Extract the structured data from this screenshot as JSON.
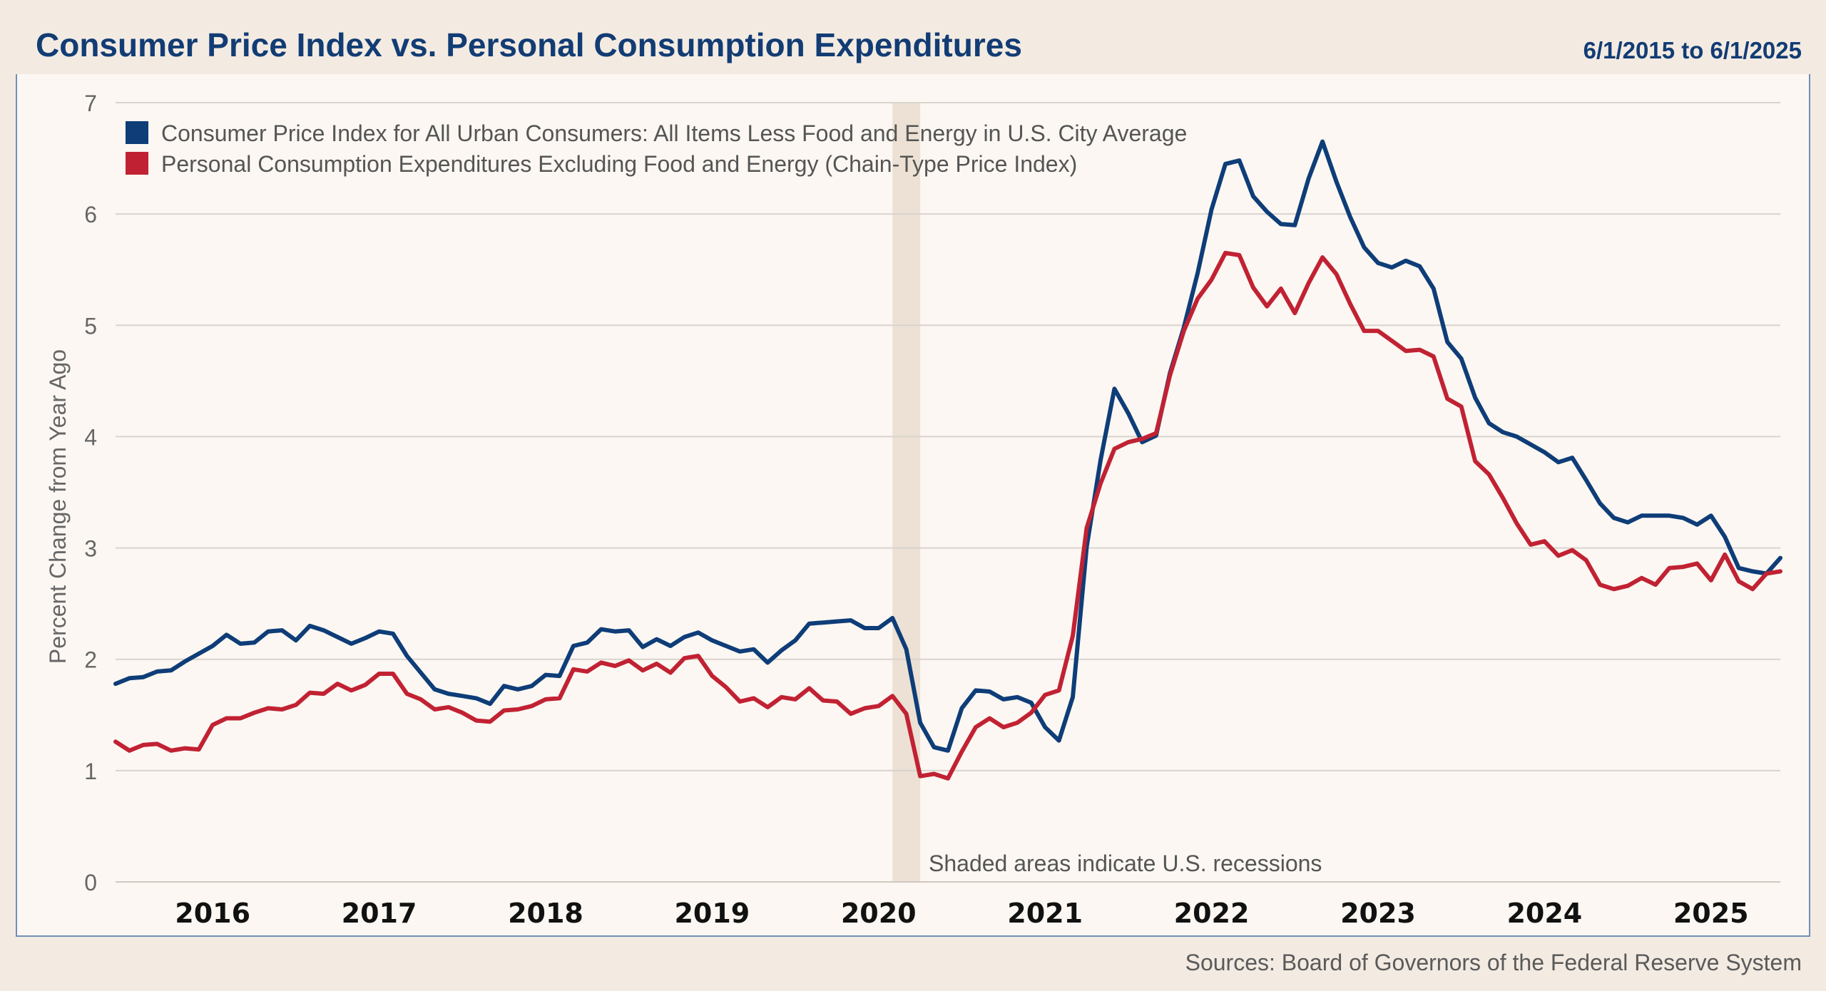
{
  "header": {
    "title": "Consumer Price Index vs. Personal Consumption Expenditures",
    "date_range": "6/1/2015 to 6/1/2025"
  },
  "footer": {
    "sources": "Sources: Board of Governors of the Federal Reserve System"
  },
  "colors": {
    "cpi": "#0e3d78",
    "pce": "#c12233",
    "recession": "#ece1d4",
    "grid": "#d9d4ce",
    "panel": "#fcf7f2",
    "header": "#f3ebe2"
  },
  "chart_data": {
    "type": "line",
    "title": "Consumer Price Index vs. Personal Consumption Expenditures",
    "xlabel": "",
    "ylabel": "Percent Change from Year Ago",
    "ylim": [
      0,
      7
    ],
    "yticks": [
      "0",
      "1",
      "2",
      "3",
      "4",
      "5",
      "6",
      "7"
    ],
    "xlim": [
      "2015-06",
      "2025-06"
    ],
    "xticks": [
      "2016",
      "2017",
      "2018",
      "2019",
      "2020",
      "2021",
      "2022",
      "2023",
      "2024",
      "2025"
    ],
    "grid": true,
    "legend_position": "top-left",
    "recession_note": "Shaded areas indicate U.S. recessions",
    "recessions": [
      {
        "start": "2020-02",
        "end": "2020-04"
      }
    ],
    "x": [
      "2015-06",
      "2015-07",
      "2015-08",
      "2015-09",
      "2015-10",
      "2015-11",
      "2015-12",
      "2016-01",
      "2016-02",
      "2016-03",
      "2016-04",
      "2016-05",
      "2016-06",
      "2016-07",
      "2016-08",
      "2016-09",
      "2016-10",
      "2016-11",
      "2016-12",
      "2017-01",
      "2017-02",
      "2017-03",
      "2017-04",
      "2017-05",
      "2017-06",
      "2017-07",
      "2017-08",
      "2017-09",
      "2017-10",
      "2017-11",
      "2017-12",
      "2018-01",
      "2018-02",
      "2018-03",
      "2018-04",
      "2018-05",
      "2018-06",
      "2018-07",
      "2018-08",
      "2018-09",
      "2018-10",
      "2018-11",
      "2018-12",
      "2019-01",
      "2019-02",
      "2019-03",
      "2019-04",
      "2019-05",
      "2019-06",
      "2019-07",
      "2019-08",
      "2019-09",
      "2019-10",
      "2019-11",
      "2019-12",
      "2020-01",
      "2020-02",
      "2020-03",
      "2020-04",
      "2020-05",
      "2020-06",
      "2020-07",
      "2020-08",
      "2020-09",
      "2020-10",
      "2020-11",
      "2020-12",
      "2021-01",
      "2021-02",
      "2021-03",
      "2021-04",
      "2021-05",
      "2021-06",
      "2021-07",
      "2021-08",
      "2021-09",
      "2021-10",
      "2021-11",
      "2021-12",
      "2022-01",
      "2022-02",
      "2022-03",
      "2022-04",
      "2022-05",
      "2022-06",
      "2022-07",
      "2022-08",
      "2022-09",
      "2022-10",
      "2022-11",
      "2022-12",
      "2023-01",
      "2023-02",
      "2023-03",
      "2023-04",
      "2023-05",
      "2023-06",
      "2023-07",
      "2023-08",
      "2023-09",
      "2023-10",
      "2023-11",
      "2023-12",
      "2024-01",
      "2024-02",
      "2024-03",
      "2024-04",
      "2024-05",
      "2024-06",
      "2024-07",
      "2024-08",
      "2024-09",
      "2024-10",
      "2024-11",
      "2024-12",
      "2025-01",
      "2025-02",
      "2025-03",
      "2025-04",
      "2025-05",
      "2025-06"
    ],
    "series": [
      {
        "name": "Consumer Price Index for All Urban Consumers: All Items Less Food and Energy in U.S. City Average",
        "color": "#0e3d78",
        "values": [
          1.78,
          1.83,
          1.84,
          1.89,
          1.9,
          1.98,
          2.05,
          2.12,
          2.22,
          2.14,
          2.15,
          2.25,
          2.26,
          2.17,
          2.3,
          2.26,
          2.2,
          2.14,
          2.19,
          2.25,
          2.23,
          2.03,
          1.88,
          1.73,
          1.69,
          1.67,
          1.65,
          1.6,
          1.76,
          1.73,
          1.76,
          1.86,
          1.85,
          2.12,
          2.15,
          2.27,
          2.25,
          2.26,
          2.11,
          2.18,
          2.12,
          2.2,
          2.24,
          2.17,
          2.12,
          2.07,
          2.09,
          1.97,
          2.08,
          2.17,
          2.32,
          2.33,
          2.34,
          2.35,
          2.28,
          2.28,
          2.37,
          2.09,
          1.43,
          1.21,
          1.18,
          1.56,
          1.72,
          1.71,
          1.64,
          1.66,
          1.61,
          1.39,
          1.27,
          1.66,
          3.01,
          3.79,
          4.43,
          4.21,
          3.95,
          4.01,
          4.57,
          4.98,
          5.47,
          6.04,
          6.45,
          6.48,
          6.16,
          6.02,
          5.91,
          5.9,
          6.32,
          6.65,
          6.29,
          5.97,
          5.7,
          5.56,
          5.52,
          5.58,
          5.53,
          5.33,
          4.85,
          4.7,
          4.35,
          4.12,
          4.04,
          4.0,
          3.93,
          3.86,
          3.77,
          3.81,
          3.61,
          3.4,
          3.27,
          3.23,
          3.29,
          3.29,
          3.29,
          3.27,
          3.21,
          3.29,
          3.1,
          2.82,
          2.79,
          2.77,
          2.91
        ]
      },
      {
        "name": "Personal Consumption Expenditures Excluding Food and Energy (Chain-Type Price Index)",
        "color": "#c12233",
        "values": [
          1.26,
          1.18,
          1.23,
          1.24,
          1.18,
          1.2,
          1.19,
          1.41,
          1.47,
          1.47,
          1.52,
          1.56,
          1.55,
          1.59,
          1.7,
          1.69,
          1.78,
          1.72,
          1.77,
          1.87,
          1.87,
          1.69,
          1.64,
          1.55,
          1.57,
          1.52,
          1.45,
          1.44,
          1.54,
          1.55,
          1.58,
          1.64,
          1.65,
          1.91,
          1.89,
          1.97,
          1.94,
          1.99,
          1.9,
          1.96,
          1.88,
          2.01,
          2.03,
          1.85,
          1.75,
          1.62,
          1.65,
          1.57,
          1.66,
          1.64,
          1.74,
          1.63,
          1.62,
          1.51,
          1.56,
          1.58,
          1.67,
          1.51,
          0.95,
          0.97,
          0.93,
          1.17,
          1.39,
          1.47,
          1.39,
          1.43,
          1.52,
          1.68,
          1.72,
          2.21,
          3.18,
          3.58,
          3.89,
          3.95,
          3.98,
          4.03,
          4.55,
          4.95,
          5.24,
          5.41,
          5.65,
          5.63,
          5.34,
          5.17,
          5.33,
          5.11,
          5.38,
          5.61,
          5.46,
          5.19,
          4.95,
          4.95,
          4.86,
          4.77,
          4.78,
          4.72,
          4.34,
          4.27,
          3.78,
          3.66,
          3.45,
          3.22,
          3.03,
          3.06,
          2.93,
          2.98,
          2.89,
          2.67,
          2.63,
          2.66,
          2.73,
          2.67,
          2.82,
          2.83,
          2.86,
          2.71,
          2.94,
          2.7,
          2.63,
          2.77,
          2.79
        ]
      }
    ]
  }
}
